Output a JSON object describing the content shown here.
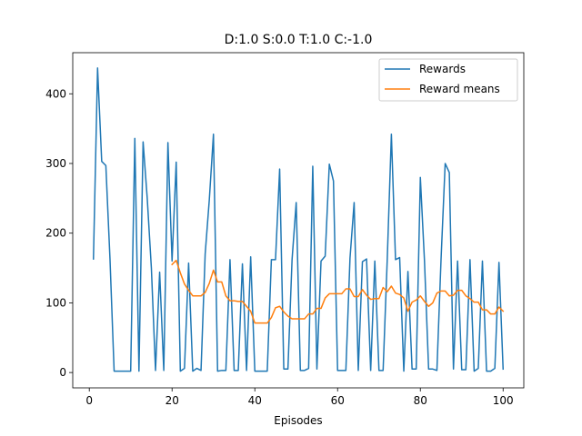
{
  "chart_data": {
    "type": "line",
    "title": "D:1.0 S:0.0 T:1.0 C:-1.0",
    "xlabel": "Episodes",
    "ylabel": "",
    "xlim": [
      -4.0,
      105.0
    ],
    "ylim": [
      -22.0,
      459.0
    ],
    "xticks": [
      0,
      20,
      40,
      60,
      80,
      100
    ],
    "yticks": [
      0,
      100,
      200,
      300,
      400
    ],
    "grid": false,
    "legend_position": "top-right",
    "series": [
      {
        "name": "Rewards",
        "color": "#1f77b4",
        "x": [
          1,
          2,
          3,
          4,
          5,
          6,
          7,
          8,
          9,
          10,
          11,
          12,
          13,
          14,
          15,
          16,
          17,
          18,
          19,
          20,
          21,
          22,
          23,
          24,
          25,
          26,
          27,
          28,
          29,
          30,
          31,
          32,
          33,
          34,
          35,
          36,
          37,
          38,
          39,
          40,
          41,
          42,
          43,
          44,
          45,
          46,
          47,
          48,
          49,
          50,
          51,
          52,
          53,
          54,
          55,
          56,
          57,
          58,
          59,
          60,
          61,
          62,
          63,
          64,
          65,
          66,
          67,
          68,
          69,
          70,
          71,
          72,
          73,
          74,
          75,
          76,
          77,
          78,
          79,
          80,
          81,
          82,
          83,
          84,
          85,
          86,
          87,
          88,
          89,
          90,
          91,
          92,
          93,
          94,
          95,
          96,
          97,
          98,
          99,
          100
        ],
        "values": [
          163,
          437,
          303,
          297,
          163,
          2,
          2,
          2,
          2,
          2,
          336,
          2,
          331,
          250,
          150,
          3,
          144,
          3,
          330,
          160,
          302,
          2,
          6,
          157,
          2,
          6,
          3,
          170,
          248,
          342,
          2,
          3,
          3,
          162,
          3,
          3,
          156,
          3,
          166,
          2,
          2,
          2,
          2,
          162,
          162,
          292,
          5,
          5,
          162,
          244,
          3,
          3,
          6,
          296,
          5,
          160,
          167,
          299,
          275,
          3,
          3,
          3,
          164,
          244,
          3,
          159,
          163,
          3,
          160,
          3,
          3,
          162,
          342,
          162,
          165,
          2,
          145,
          5,
          5,
          280,
          160,
          5,
          5,
          3,
          162,
          300,
          287,
          5,
          160,
          4,
          4,
          162,
          2,
          6,
          160,
          2,
          2,
          6,
          158,
          5
        ]
      },
      {
        "name": "Reward means",
        "color": "#ff7f0e",
        "x": [
          20,
          21,
          22,
          23,
          24,
          25,
          26,
          27,
          28,
          29,
          30,
          31,
          32,
          33,
          34,
          35,
          36,
          37,
          38,
          39,
          40,
          41,
          42,
          43,
          44,
          45,
          46,
          47,
          48,
          49,
          50,
          51,
          52,
          53,
          54,
          55,
          56,
          57,
          58,
          59,
          60,
          61,
          62,
          63,
          64,
          65,
          66,
          67,
          68,
          69,
          70,
          71,
          72,
          73,
          74,
          75,
          76,
          77,
          78,
          79,
          80,
          81,
          82,
          83,
          84,
          85,
          86,
          87,
          88,
          89,
          90,
          91,
          92,
          93,
          94,
          95,
          96,
          97,
          98,
          99,
          100
        ],
        "values": [
          155,
          161,
          143,
          127,
          118,
          110,
          110,
          110,
          115,
          128,
          147,
          130,
          130,
          110,
          103,
          103,
          102,
          102,
          95,
          88,
          71,
          71,
          71,
          71,
          79,
          93,
          95,
          87,
          81,
          77,
          77,
          77,
          77,
          84,
          84,
          92,
          92,
          107,
          113,
          113,
          113,
          113,
          120,
          120,
          109,
          109,
          119,
          111,
          105,
          106,
          106,
          122,
          116,
          124,
          114,
          112,
          107,
          88,
          101,
          104,
          110,
          102,
          95,
          100,
          114,
          117,
          117,
          110,
          111,
          118,
          118,
          110,
          106,
          101,
          101,
          90,
          90,
          84,
          84,
          94,
          88
        ]
      }
    ]
  }
}
